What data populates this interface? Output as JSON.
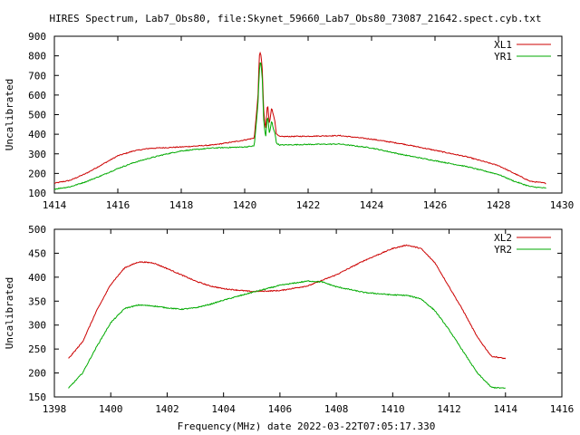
{
  "title": "HIRES Spectrum, Lab7_Obs80, file:Skynet_59660_Lab7_Obs80_73087_21642.spect.cyb.txt",
  "xlabel": "Frequency(MHz) date 2022-03-22T07:05:17.330",
  "colors": {
    "series1": "#cc0000",
    "series2": "#00aa00",
    "axis": "#000000"
  },
  "chart_data": [
    {
      "type": "line",
      "ylabel": "Uncalibrated",
      "xlim": [
        1414,
        1430
      ],
      "ylim": [
        100,
        900
      ],
      "xticks": [
        "1414",
        "1416",
        "1418",
        "1420",
        "1422",
        "1424",
        "1426",
        "1428",
        "1430"
      ],
      "yticks": [
        "100",
        "200",
        "300",
        "400",
        "500",
        "600",
        "700",
        "800",
        "900"
      ],
      "legend_position": "top-right",
      "series": [
        {
          "name": "XL1",
          "color": "#cc0000",
          "points": [
            [
              1414.0,
              150
            ],
            [
              1414.5,
              165
            ],
            [
              1415.0,
              200
            ],
            [
              1415.5,
              245
            ],
            [
              1416.0,
              290
            ],
            [
              1416.5,
              315
            ],
            [
              1417.0,
              328
            ],
            [
              1418.0,
              335
            ],
            [
              1419.0,
              345
            ],
            [
              1419.8,
              365
            ],
            [
              1420.3,
              380
            ],
            [
              1420.38,
              520
            ],
            [
              1420.42,
              600
            ],
            [
              1420.46,
              800
            ],
            [
              1420.5,
              820
            ],
            [
              1420.55,
              750
            ],
            [
              1420.6,
              520
            ],
            [
              1420.66,
              420
            ],
            [
              1420.72,
              560
            ],
            [
              1420.78,
              450
            ],
            [
              1420.85,
              540
            ],
            [
              1420.9,
              500
            ],
            [
              1420.95,
              470
            ],
            [
              1421.0,
              400
            ],
            [
              1421.1,
              388
            ],
            [
              1422.0,
              390
            ],
            [
              1423.0,
              393
            ],
            [
              1424.0,
              375
            ],
            [
              1425.0,
              350
            ],
            [
              1426.0,
              318
            ],
            [
              1427.0,
              285
            ],
            [
              1428.0,
              240
            ],
            [
              1428.5,
              200
            ],
            [
              1429.0,
              160
            ],
            [
              1429.5,
              150
            ]
          ]
        },
        {
          "name": "YR1",
          "color": "#00aa00",
          "points": [
            [
              1414.0,
              120
            ],
            [
              1414.5,
              132
            ],
            [
              1415.0,
              158
            ],
            [
              1415.5,
              190
            ],
            [
              1416.0,
              225
            ],
            [
              1416.5,
              255
            ],
            [
              1417.0,
              278
            ],
            [
              1417.5,
              298
            ],
            [
              1418.0,
              315
            ],
            [
              1419.0,
              330
            ],
            [
              1420.0,
              335
            ],
            [
              1420.3,
              340
            ],
            [
              1420.38,
              480
            ],
            [
              1420.42,
              560
            ],
            [
              1420.46,
              720
            ],
            [
              1420.5,
              780
            ],
            [
              1420.55,
              700
            ],
            [
              1420.6,
              470
            ],
            [
              1420.66,
              380
            ],
            [
              1420.72,
              500
            ],
            [
              1420.78,
              400
            ],
            [
              1420.85,
              470
            ],
            [
              1420.9,
              430
            ],
            [
              1420.95,
              410
            ],
            [
              1421.0,
              355
            ],
            [
              1421.1,
              345
            ],
            [
              1422.0,
              348
            ],
            [
              1423.0,
              350
            ],
            [
              1424.0,
              330
            ],
            [
              1425.0,
              295
            ],
            [
              1426.0,
              265
            ],
            [
              1427.0,
              235
            ],
            [
              1428.0,
              195
            ],
            [
              1428.5,
              160
            ],
            [
              1429.0,
              133
            ],
            [
              1429.5,
              125
            ]
          ]
        }
      ]
    },
    {
      "type": "line",
      "ylabel": "Uncalibrated",
      "xlim": [
        1398,
        1416
      ],
      "ylim": [
        150,
        500
      ],
      "xticks": [
        "1398",
        "1400",
        "1402",
        "1404",
        "1406",
        "1408",
        "1410",
        "1412",
        "1414",
        "1416"
      ],
      "yticks": [
        "150",
        "200",
        "250",
        "300",
        "350",
        "400",
        "450",
        "500"
      ],
      "legend_position": "top-right",
      "series": [
        {
          "name": "XL2",
          "color": "#cc0000",
          "points": [
            [
              1398.5,
              230
            ],
            [
              1399.0,
              265
            ],
            [
              1399.5,
              330
            ],
            [
              1400.0,
              385
            ],
            [
              1400.5,
              420
            ],
            [
              1401.0,
              432
            ],
            [
              1401.5,
              430
            ],
            [
              1402.0,
              418
            ],
            [
              1402.5,
              405
            ],
            [
              1403.0,
              392
            ],
            [
              1403.5,
              382
            ],
            [
              1404.0,
              376
            ],
            [
              1405.0,
              370
            ],
            [
              1406.0,
              372
            ],
            [
              1407.0,
              382
            ],
            [
              1408.0,
              405
            ],
            [
              1409.0,
              435
            ],
            [
              1410.0,
              460
            ],
            [
              1410.5,
              467
            ],
            [
              1411.0,
              460
            ],
            [
              1411.5,
              430
            ],
            [
              1412.0,
              380
            ],
            [
              1412.5,
              330
            ],
            [
              1413.0,
              275
            ],
            [
              1413.5,
              235
            ],
            [
              1414.0,
              230
            ]
          ]
        },
        {
          "name": "YR2",
          "color": "#00aa00",
          "points": [
            [
              1398.5,
              168
            ],
            [
              1399.0,
              200
            ],
            [
              1399.5,
              255
            ],
            [
              1400.0,
              305
            ],
            [
              1400.5,
              335
            ],
            [
              1401.0,
              342
            ],
            [
              1401.5,
              340
            ],
            [
              1402.0,
              336
            ],
            [
              1402.5,
              333
            ],
            [
              1403.0,
              336
            ],
            [
              1403.5,
              343
            ],
            [
              1404.0,
              352
            ],
            [
              1405.0,
              368
            ],
            [
              1406.0,
              383
            ],
            [
              1407.0,
              392
            ],
            [
              1407.5,
              390
            ],
            [
              1408.0,
              380
            ],
            [
              1409.0,
              368
            ],
            [
              1410.0,
              363
            ],
            [
              1410.5,
              362
            ],
            [
              1411.0,
              355
            ],
            [
              1411.5,
              330
            ],
            [
              1412.0,
              290
            ],
            [
              1412.5,
              245
            ],
            [
              1413.0,
              200
            ],
            [
              1413.5,
              170
            ],
            [
              1414.0,
              168
            ]
          ]
        }
      ]
    }
  ]
}
